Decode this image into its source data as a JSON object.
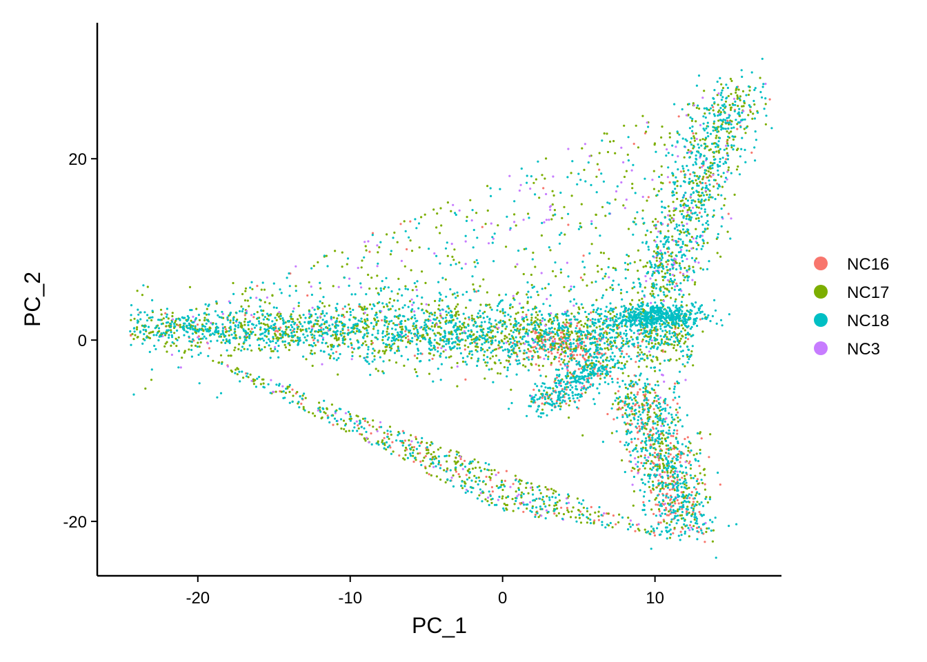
{
  "chart_data": {
    "type": "scatter",
    "title": "",
    "xlabel": "PC_1",
    "ylabel": "PC_2",
    "xlim": [
      -26.6,
      18.3
    ],
    "ylim": [
      -26.0,
      35.0
    ],
    "x_ticks": [
      {
        "value": -20,
        "label": "-20"
      },
      {
        "value": -10,
        "label": "-10"
      },
      {
        "value": 0,
        "label": "0"
      },
      {
        "value": 10,
        "label": "10"
      }
    ],
    "y_ticks": [
      {
        "value": -20,
        "label": "-20"
      },
      {
        "value": 0,
        "label": "0"
      },
      {
        "value": 20,
        "label": "20"
      }
    ],
    "grid": false,
    "legend_position": "right",
    "series": [
      {
        "name": "NC16",
        "color": "#F8766D"
      },
      {
        "name": "NC17",
        "color": "#7CAE00"
      },
      {
        "name": "NC18",
        "color": "#00BFC4"
      },
      {
        "name": "NC3",
        "color": "#C77CFF"
      }
    ],
    "point_groups": [
      {
        "label": "horizontal band",
        "x_range": [
          -24.5,
          12.5
        ],
        "y_center": 0.8,
        "y_spread": 1.3,
        "count": 2600,
        "weights": [
          0.04,
          0.42,
          0.52,
          0.02
        ]
      },
      {
        "label": "right cluster",
        "x_center": 10.0,
        "y_center": 2.6,
        "x_spread": 1.6,
        "y_spread": 0.7,
        "count": 500,
        "weights": [
          0.02,
          0.05,
          0.92,
          0.01
        ]
      },
      {
        "label": "central red cluster",
        "x_center": 4.0,
        "y_center": -0.5,
        "x_spread": 1.6,
        "y_spread": 1.4,
        "count": 280,
        "weights": [
          0.55,
          0.2,
          0.2,
          0.05
        ]
      },
      {
        "label": "upper arm",
        "from": [
          10.0,
          5.0
        ],
        "to": [
          15.5,
          28.0
        ],
        "spread": 1.2,
        "count": 900,
        "weights": [
          0.02,
          0.35,
          0.55,
          0.08
        ]
      },
      {
        "label": "lower-right arm",
        "from": [
          9.0,
          -5.0
        ],
        "to": [
          12.0,
          -21.0
        ],
        "spread": 1.1,
        "count": 1000,
        "weights": [
          0.25,
          0.25,
          0.46,
          0.04
        ]
      },
      {
        "label": "lower-middle arm",
        "from": [
          7.0,
          -2.0
        ],
        "to": [
          2.5,
          -7.5
        ],
        "spread": 0.8,
        "count": 380,
        "weights": [
          0.2,
          0.15,
          0.62,
          0.03
        ]
      },
      {
        "label": "sparse upper triangle",
        "vertices": [
          [
            -22,
            2
          ],
          [
            15,
            29
          ],
          [
            12,
            2
          ]
        ],
        "count": 650,
        "weights": [
          0.05,
          0.42,
          0.38,
          0.15
        ]
      },
      {
        "label": "sparse lower triangle",
        "vertices": [
          [
            -22,
            0
          ],
          [
            0,
            -19
          ],
          [
            12,
            -22
          ]
        ],
        "count": 650,
        "weights": [
          0.12,
          0.46,
          0.37,
          0.05
        ]
      }
    ]
  }
}
